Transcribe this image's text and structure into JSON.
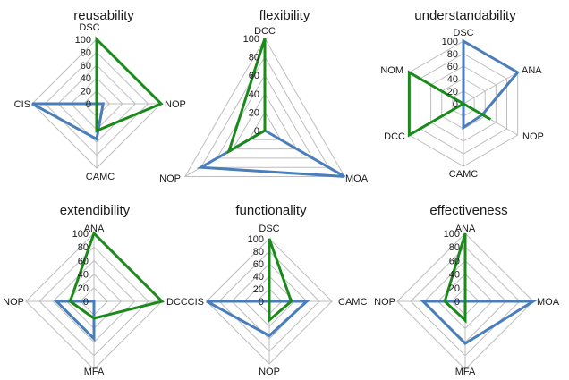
{
  "chart_data": [
    {
      "type": "radar",
      "title": "reusability",
      "axes": [
        "DSC",
        "NOP",
        "CAMC",
        "CIS"
      ],
      "ticks": [
        "0",
        "20",
        "40",
        "60",
        "80",
        "100"
      ],
      "rlim": [
        0,
        100
      ],
      "series": [
        {
          "color": "#4a7ebb",
          "values": [
            0,
            10,
            55,
            100
          ]
        },
        {
          "color": "#1a8a1a",
          "values": [
            100,
            100,
            42,
            0
          ]
        }
      ]
    },
    {
      "type": "radar",
      "title": "flexibility",
      "axes": [
        "DCC",
        "MOA",
        "NOP"
      ],
      "ticks": [
        "0",
        "20",
        "40",
        "60",
        "80",
        "100"
      ],
      "rlim": [
        0,
        100
      ],
      "series": [
        {
          "color": "#4a7ebb",
          "values": [
            0,
            100,
            80
          ]
        },
        {
          "color": "#1a8a1a",
          "values": [
            100,
            0,
            45
          ]
        }
      ]
    },
    {
      "type": "radar",
      "title": "understandability",
      "axes": [
        "DSC",
        "ANA",
        "NOP",
        "CAMC",
        "DCC",
        "NOM"
      ],
      "ticks": [
        "0",
        "20",
        "40",
        "60",
        "80",
        "100"
      ],
      "rlim": [
        0,
        100
      ],
      "series": [
        {
          "color": "#4a7ebb",
          "values": [
            100,
            100,
            35,
            38,
            0,
            0
          ]
        },
        {
          "color": "#1a8a1a",
          "values": [
            0,
            0,
            50,
            0,
            100,
            100
          ]
        }
      ]
    },
    {
      "type": "radar",
      "title": "extendibility",
      "axes": [
        "ANA",
        "DCC",
        "MFA",
        "NOP"
      ],
      "ticks": [
        "0",
        "20",
        "40",
        "60",
        "80",
        "100"
      ],
      "rlim": [
        0,
        100
      ],
      "series": [
        {
          "color": "#4a7ebb",
          "values": [
            0,
            0,
            55,
            55
          ]
        },
        {
          "color": "#1a8a1a",
          "values": [
            100,
            100,
            25,
            35
          ]
        }
      ]
    },
    {
      "type": "radar",
      "title": "functionality",
      "axes": [
        "DSC",
        "CAMC",
        "NOP",
        "CIS"
      ],
      "ticks": [
        "0",
        "20",
        "40",
        "60",
        "80",
        "100"
      ],
      "rlim": [
        0,
        100
      ],
      "series": [
        {
          "color": "#4a7ebb",
          "values": [
            0,
            60,
            55,
            100
          ]
        },
        {
          "color": "#1a8a1a",
          "values": [
            100,
            35,
            30,
            0
          ]
        }
      ]
    },
    {
      "type": "radar",
      "title": "effectiveness",
      "axes": [
        "ANA",
        "MOA",
        "MFA",
        "NOP"
      ],
      "ticks": [
        "0",
        "20",
        "40",
        "60",
        "80",
        "100"
      ],
      "rlim": [
        0,
        100
      ],
      "series": [
        {
          "color": "#4a7ebb",
          "values": [
            0,
            100,
            62,
            62
          ]
        },
        {
          "color": "#1a8a1a",
          "values": [
            100,
            0,
            28,
            30
          ]
        }
      ]
    }
  ]
}
